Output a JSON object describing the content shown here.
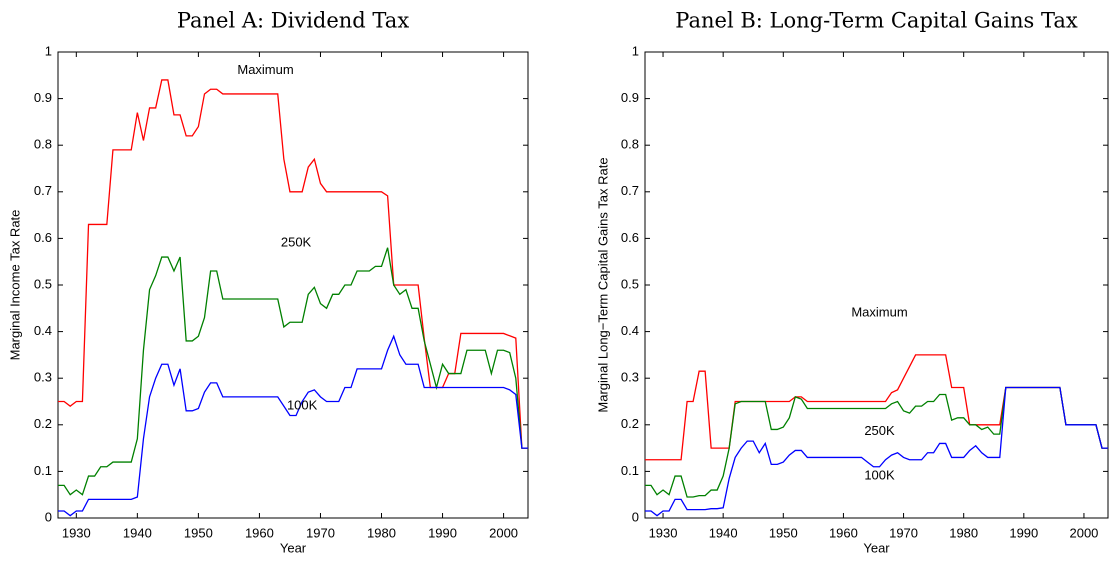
{
  "chart_data": [
    {
      "type": "line",
      "title": "Panel A: Dividend Tax",
      "xlabel": "Year",
      "ylabel": "Marginal Income Tax Rate",
      "x": [
        1927,
        1928,
        1929,
        1930,
        1931,
        1932,
        1933,
        1934,
        1935,
        1936,
        1937,
        1938,
        1939,
        1940,
        1941,
        1942,
        1943,
        1944,
        1945,
        1946,
        1947,
        1948,
        1949,
        1950,
        1951,
        1952,
        1953,
        1954,
        1955,
        1956,
        1957,
        1958,
        1959,
        1960,
        1961,
        1962,
        1963,
        1964,
        1965,
        1966,
        1967,
        1968,
        1969,
        1970,
        1971,
        1972,
        1973,
        1974,
        1975,
        1976,
        1977,
        1978,
        1979,
        1980,
        1981,
        1982,
        1983,
        1984,
        1985,
        1986,
        1987,
        1988,
        1989,
        1990,
        1991,
        1992,
        1993,
        1994,
        1995,
        1996,
        1997,
        1998,
        1999,
        2000,
        2001,
        2002,
        2003,
        2004
      ],
      "series": [
        {
          "name": "Maximum",
          "color": "#ff0000",
          "values": [
            0.25,
            0.25,
            0.24,
            0.25,
            0.25,
            0.63,
            0.63,
            0.63,
            0.63,
            0.79,
            0.79,
            0.79,
            0.79,
            0.87,
            0.81,
            0.88,
            0.88,
            0.94,
            0.94,
            0.865,
            0.865,
            0.82,
            0.82,
            0.84,
            0.91,
            0.92,
            0.92,
            0.91,
            0.91,
            0.91,
            0.91,
            0.91,
            0.91,
            0.91,
            0.91,
            0.91,
            0.91,
            0.77,
            0.7,
            0.7,
            0.7,
            0.753,
            0.77,
            0.718,
            0.7,
            0.7,
            0.7,
            0.7,
            0.7,
            0.7,
            0.7,
            0.7,
            0.7,
            0.7,
            0.6913,
            0.5,
            0.5,
            0.5,
            0.5,
            0.5,
            0.385,
            0.28,
            0.28,
            0.28,
            0.31,
            0.31,
            0.396,
            0.396,
            0.396,
            0.396,
            0.396,
            0.396,
            0.396,
            0.396,
            0.391,
            0.386,
            0.15,
            0.15
          ]
        },
        {
          "name": "250K",
          "color": "#008000",
          "values": [
            0.07,
            0.07,
            0.05,
            0.06,
            0.05,
            0.09,
            0.09,
            0.11,
            0.11,
            0.12,
            0.12,
            0.12,
            0.12,
            0.17,
            0.36,
            0.49,
            0.52,
            0.56,
            0.56,
            0.53,
            0.56,
            0.38,
            0.38,
            0.39,
            0.43,
            0.53,
            0.53,
            0.47,
            0.47,
            0.47,
            0.47,
            0.47,
            0.47,
            0.47,
            0.47,
            0.47,
            0.47,
            0.41,
            0.42,
            0.42,
            0.42,
            0.48,
            0.495,
            0.46,
            0.45,
            0.48,
            0.48,
            0.5,
            0.5,
            0.53,
            0.53,
            0.53,
            0.54,
            0.54,
            0.58,
            0.5,
            0.48,
            0.49,
            0.45,
            0.45,
            0.38,
            0.33,
            0.28,
            0.33,
            0.31,
            0.31,
            0.31,
            0.36,
            0.36,
            0.36,
            0.36,
            0.31,
            0.36,
            0.36,
            0.355,
            0.3,
            0.15,
            0.15
          ]
        },
        {
          "name": "100K",
          "color": "#0000ff",
          "values": [
            0.015,
            0.015,
            0.005,
            0.015,
            0.015,
            0.04,
            0.04,
            0.04,
            0.04,
            0.04,
            0.04,
            0.04,
            0.04,
            0.045,
            0.17,
            0.26,
            0.3,
            0.33,
            0.33,
            0.285,
            0.32,
            0.23,
            0.23,
            0.235,
            0.27,
            0.29,
            0.29,
            0.26,
            0.26,
            0.26,
            0.26,
            0.26,
            0.26,
            0.26,
            0.26,
            0.26,
            0.26,
            0.24,
            0.22,
            0.22,
            0.25,
            0.27,
            0.275,
            0.26,
            0.25,
            0.25,
            0.25,
            0.28,
            0.28,
            0.32,
            0.32,
            0.32,
            0.32,
            0.32,
            0.36,
            0.39,
            0.35,
            0.33,
            0.33,
            0.33,
            0.28,
            0.28,
            0.28,
            0.28,
            0.28,
            0.28,
            0.28,
            0.28,
            0.28,
            0.28,
            0.28,
            0.28,
            0.28,
            0.28,
            0.275,
            0.265,
            0.15,
            0.15
          ]
        }
      ],
      "xlim": [
        1927,
        2004
      ],
      "xticks": [
        1930,
        1940,
        1950,
        1960,
        1970,
        1980,
        1990,
        2000
      ],
      "ylim": [
        0,
        1
      ],
      "yticks": [
        0,
        0.1,
        0.2,
        0.3,
        0.4,
        0.5,
        0.6,
        0.7,
        0.8,
        0.9,
        1
      ]
    },
    {
      "type": "line",
      "title": "Panel B: Long-Term Capital Gains Tax",
      "xlabel": "Year",
      "ylabel": "Marginal Long−Term Capital Gains Tax Rate",
      "x": [
        1927,
        1928,
        1929,
        1930,
        1931,
        1932,
        1933,
        1934,
        1935,
        1936,
        1937,
        1938,
        1939,
        1940,
        1941,
        1942,
        1943,
        1944,
        1945,
        1946,
        1947,
        1948,
        1949,
        1950,
        1951,
        1952,
        1953,
        1954,
        1955,
        1956,
        1957,
        1958,
        1959,
        1960,
        1961,
        1962,
        1963,
        1964,
        1965,
        1966,
        1967,
        1968,
        1969,
        1970,
        1971,
        1972,
        1973,
        1974,
        1975,
        1976,
        1977,
        1978,
        1979,
        1980,
        1981,
        1982,
        1983,
        1984,
        1985,
        1986,
        1987,
        1988,
        1989,
        1990,
        1991,
        1992,
        1993,
        1994,
        1995,
        1996,
        1997,
        1998,
        1999,
        2000,
        2001,
        2002,
        2003,
        2004
      ],
      "series": [
        {
          "name": "Maximum",
          "color": "#ff0000",
          "values": [
            0.125,
            0.125,
            0.125,
            0.125,
            0.125,
            0.125,
            0.125,
            0.25,
            0.25,
            0.315,
            0.315,
            0.15,
            0.15,
            0.15,
            0.15,
            0.25,
            0.25,
            0.25,
            0.25,
            0.25,
            0.25,
            0.25,
            0.25,
            0.25,
            0.25,
            0.26,
            0.26,
            0.25,
            0.25,
            0.25,
            0.25,
            0.25,
            0.25,
            0.25,
            0.25,
            0.25,
            0.25,
            0.25,
            0.25,
            0.25,
            0.25,
            0.269,
            0.275,
            0.3,
            0.325,
            0.35,
            0.35,
            0.35,
            0.35,
            0.35,
            0.35,
            0.28,
            0.28,
            0.28,
            0.2,
            0.2,
            0.2,
            0.2,
            0.2,
            0.2,
            0.28,
            0.28,
            0.28,
            0.28,
            0.28,
            0.28,
            0.28,
            0.28,
            0.28,
            0.28,
            0.2,
            0.2,
            0.2,
            0.2,
            0.2,
            0.2,
            0.15,
            0.15
          ]
        },
        {
          "name": "250K",
          "color": "#008000",
          "values": [
            0.07,
            0.07,
            0.05,
            0.06,
            0.05,
            0.09,
            0.09,
            0.045,
            0.045,
            0.048,
            0.048,
            0.06,
            0.06,
            0.09,
            0.15,
            0.245,
            0.25,
            0.25,
            0.25,
            0.25,
            0.25,
            0.19,
            0.19,
            0.195,
            0.215,
            0.26,
            0.255,
            0.235,
            0.235,
            0.235,
            0.235,
            0.235,
            0.235,
            0.235,
            0.235,
            0.235,
            0.235,
            0.235,
            0.235,
            0.235,
            0.235,
            0.245,
            0.25,
            0.23,
            0.225,
            0.24,
            0.24,
            0.25,
            0.25,
            0.265,
            0.265,
            0.21,
            0.215,
            0.215,
            0.2,
            0.2,
            0.19,
            0.195,
            0.18,
            0.18,
            0.28,
            0.28,
            0.28,
            0.28,
            0.28,
            0.28,
            0.28,
            0.28,
            0.28,
            0.28,
            0.2,
            0.2,
            0.2,
            0.2,
            0.2,
            0.2,
            0.15,
            0.15
          ]
        },
        {
          "name": "100K",
          "color": "#0000ff",
          "values": [
            0.015,
            0.015,
            0.005,
            0.015,
            0.015,
            0.04,
            0.04,
            0.018,
            0.018,
            0.018,
            0.018,
            0.02,
            0.02,
            0.022,
            0.085,
            0.13,
            0.15,
            0.165,
            0.165,
            0.14,
            0.16,
            0.115,
            0.115,
            0.12,
            0.135,
            0.145,
            0.145,
            0.13,
            0.13,
            0.13,
            0.13,
            0.13,
            0.13,
            0.13,
            0.13,
            0.13,
            0.13,
            0.12,
            0.11,
            0.11,
            0.125,
            0.135,
            0.14,
            0.13,
            0.125,
            0.125,
            0.125,
            0.14,
            0.14,
            0.16,
            0.16,
            0.13,
            0.13,
            0.13,
            0.145,
            0.155,
            0.14,
            0.13,
            0.13,
            0.13,
            0.28,
            0.28,
            0.28,
            0.28,
            0.28,
            0.28,
            0.28,
            0.28,
            0.28,
            0.28,
            0.2,
            0.2,
            0.2,
            0.2,
            0.2,
            0.2,
            0.15,
            0.15
          ]
        }
      ],
      "xlim": [
        1927,
        2004
      ],
      "xticks": [
        1930,
        1940,
        1950,
        1960,
        1970,
        1980,
        1990,
        2000
      ],
      "ylim": [
        0,
        1
      ],
      "yticks": [
        0,
        0.1,
        0.2,
        0.3,
        0.4,
        0.5,
        0.6,
        0.7,
        0.8,
        0.9,
        1
      ]
    }
  ]
}
